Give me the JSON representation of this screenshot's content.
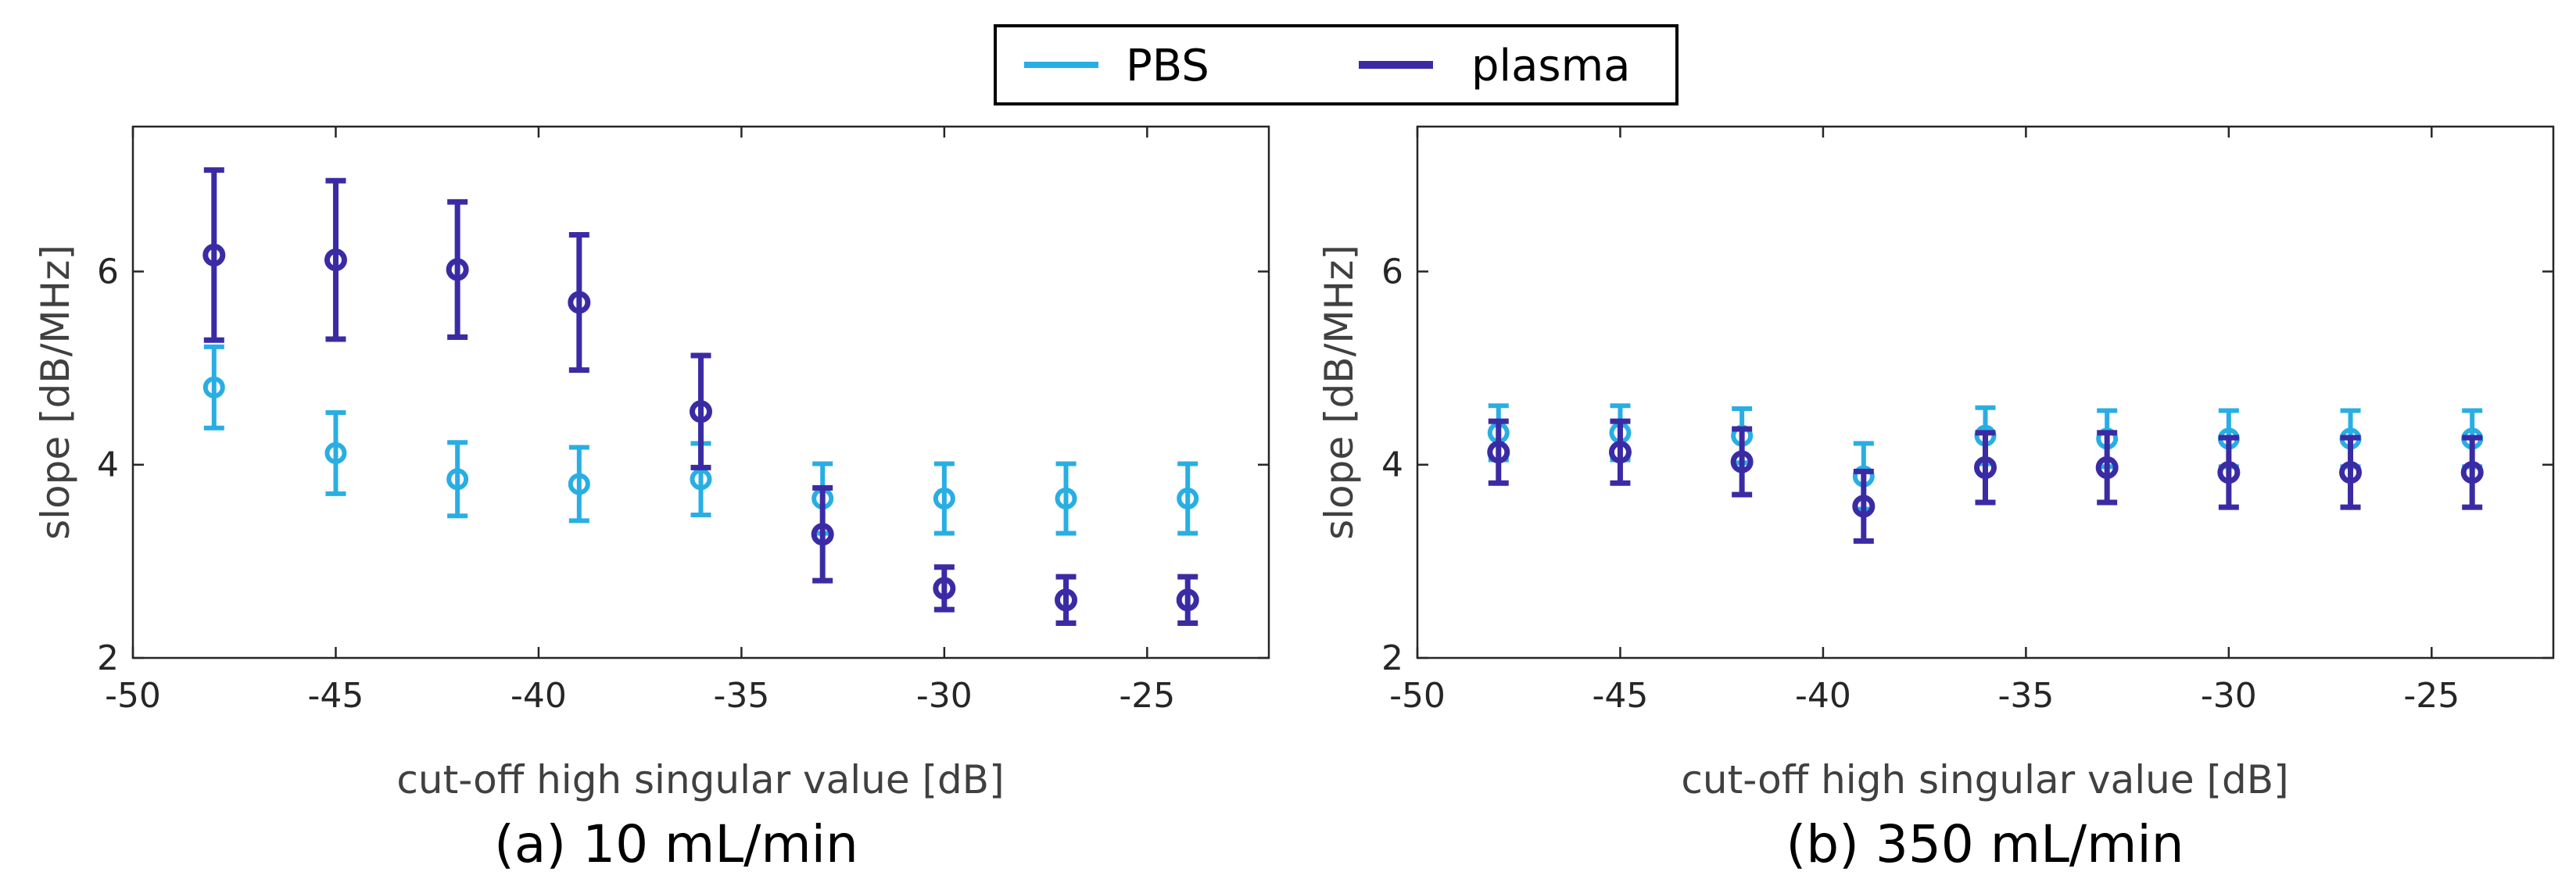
{
  "legend": {
    "entries": [
      {
        "label": "PBS",
        "color": "#29aee3"
      },
      {
        "label": "plasma",
        "color": "#3a2ba5"
      }
    ]
  },
  "chart_data": [
    {
      "type": "scatter",
      "caption": "(a) 10 mL/min",
      "xlabel": "cut-off high singular value [dB]",
      "ylabel": "slope [dB/MHz]",
      "xlim": [
        -50,
        -22
      ],
      "ylim": [
        2,
        7.5
      ],
      "xticks": [
        -50,
        -45,
        -40,
        -35,
        -30,
        -25
      ],
      "yticks": [
        2,
        4,
        6
      ],
      "grid": false,
      "series": [
        {
          "name": "PBS",
          "color": "#29aee3",
          "x": [
            -48,
            -45,
            -42,
            -39,
            -36,
            -33,
            -30,
            -27,
            -24
          ],
          "y": [
            4.8,
            4.12,
            3.85,
            3.8,
            3.85,
            3.65,
            3.65,
            3.65,
            3.65
          ],
          "err": [
            0.42,
            0.42,
            0.38,
            0.38,
            0.37,
            0.36,
            0.36,
            0.36,
            0.36
          ]
        },
        {
          "name": "plasma",
          "color": "#3a2ba5",
          "x": [
            -48,
            -45,
            -42,
            -39,
            -36,
            -33,
            -30,
            -27,
            -24
          ],
          "y": [
            6.17,
            6.12,
            6.02,
            5.68,
            4.55,
            3.28,
            2.72,
            2.6,
            2.6
          ],
          "err": [
            0.88,
            0.82,
            0.7,
            0.7,
            0.58,
            0.48,
            0.22,
            0.24,
            0.24
          ]
        }
      ]
    },
    {
      "type": "scatter",
      "caption": "(b) 350 mL/min",
      "xlabel": "cut-off high singular value [dB]",
      "ylabel": "slope [dB/MHz]",
      "xlim": [
        -50,
        -22
      ],
      "ylim": [
        2,
        7.5
      ],
      "xticks": [
        -50,
        -45,
        -40,
        -35,
        -30,
        -25
      ],
      "yticks": [
        2,
        4,
        6
      ],
      "grid": false,
      "series": [
        {
          "name": "PBS",
          "color": "#29aee3",
          "x": [
            -48,
            -45,
            -42,
            -39,
            -36,
            -33,
            -30,
            -27,
            -24
          ],
          "y": [
            4.33,
            4.33,
            4.3,
            3.88,
            4.3,
            4.27,
            4.27,
            4.27,
            4.27
          ],
          "err": [
            0.28,
            0.28,
            0.28,
            0.34,
            0.29,
            0.29,
            0.29,
            0.29,
            0.29
          ]
        },
        {
          "name": "plasma",
          "color": "#3a2ba5",
          "x": [
            -48,
            -45,
            -42,
            -39,
            -36,
            -33,
            -30,
            -27,
            -24
          ],
          "y": [
            4.13,
            4.13,
            4.03,
            3.57,
            3.97,
            3.97,
            3.92,
            3.92,
            3.92
          ],
          "err": [
            0.32,
            0.32,
            0.34,
            0.36,
            0.36,
            0.36,
            0.36,
            0.36,
            0.36
          ]
        }
      ]
    }
  ]
}
